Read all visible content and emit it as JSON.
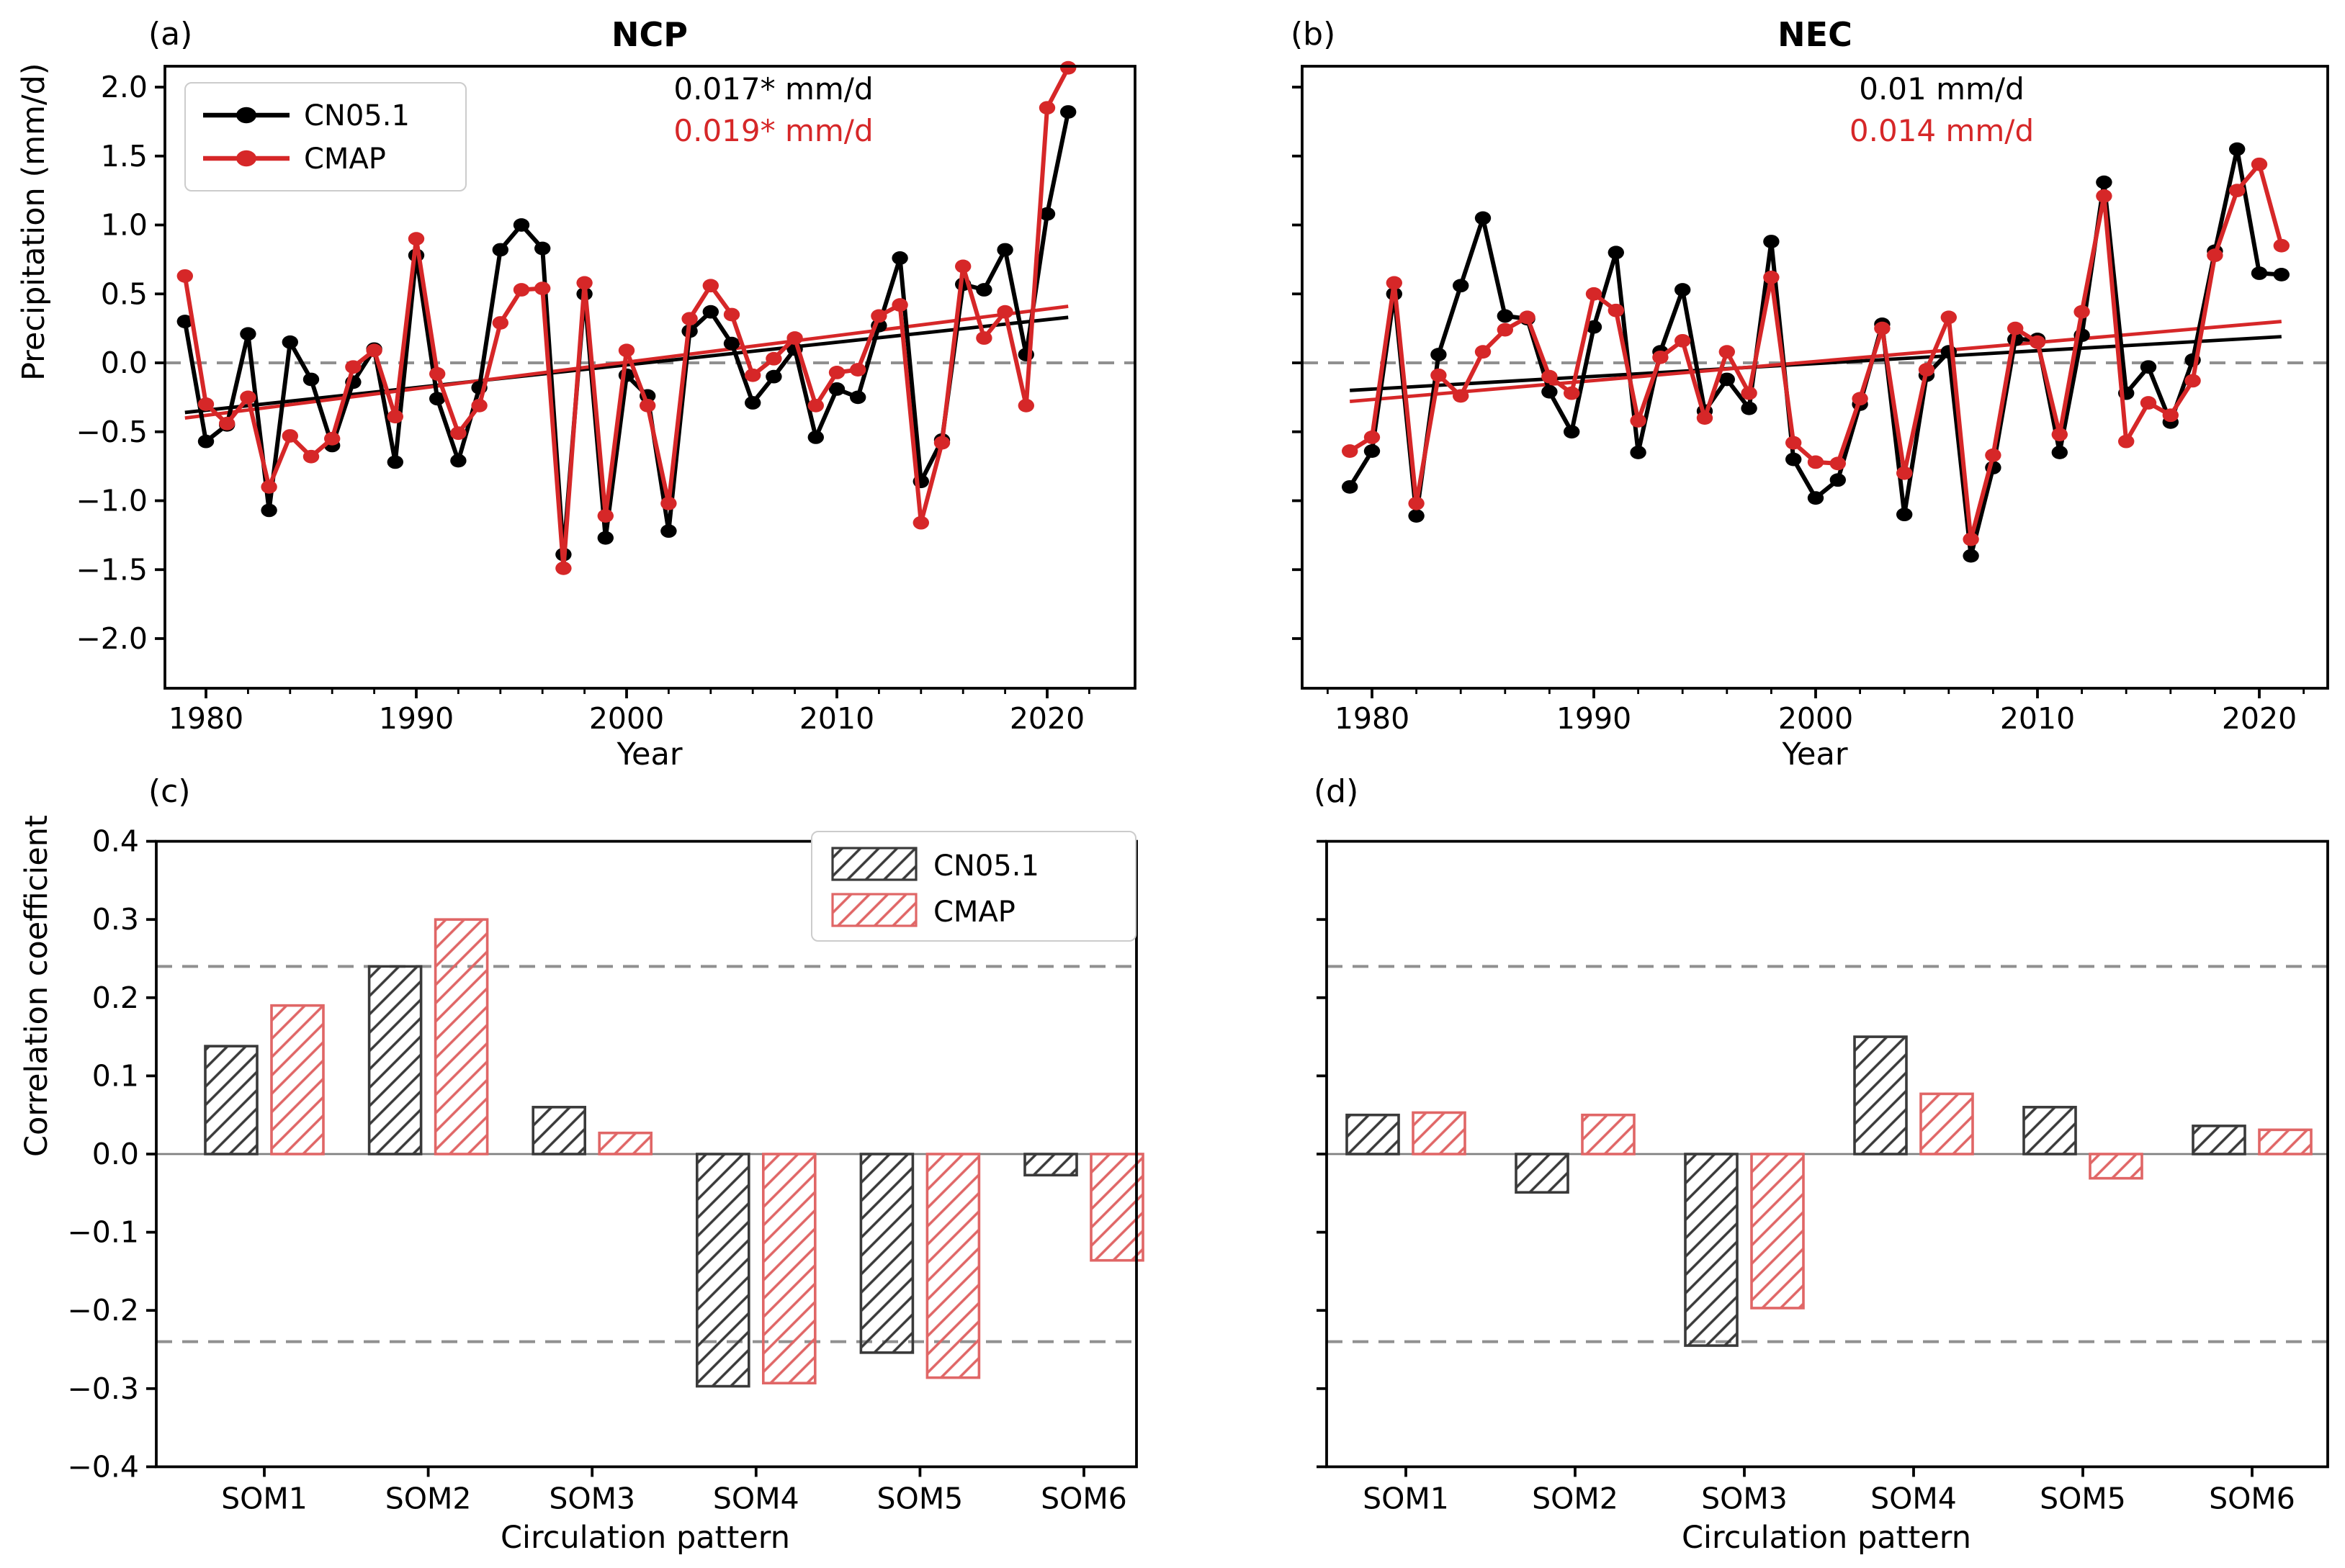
{
  "figure": {
    "panel_letters": [
      "(a)",
      "(b)",
      "(c)",
      "(d)"
    ],
    "colors": {
      "cn051_line": "#000000",
      "cmap_line": "#d62728",
      "cn051_bar": "#3a3a3a",
      "cmap_bar": "#e06666",
      "dashed_reference": "#909090",
      "zero_line_gray": "#808080"
    }
  },
  "chart_data": [
    {
      "type": "line",
      "panel": "a",
      "title": "NCP",
      "xlabel": "Year",
      "ylabel": "Precipitation (mm/d)",
      "ylim": [
        -2.36,
        2.15
      ],
      "yticks": [
        "2.0",
        "1.5",
        "1.0",
        "0.5",
        "0.0",
        "−0.5",
        "−1.0",
        "−1.5",
        "−2.0"
      ],
      "ytick_values": [
        2.0,
        1.5,
        1.0,
        0.5,
        0.0,
        -0.5,
        -1.0,
        -1.5,
        -2.0
      ],
      "xticks": [
        1980,
        1990,
        2000,
        2010,
        2020
      ],
      "zero_dashed_line": 0,
      "x": [
        1979,
        1980,
        1981,
        1982,
        1983,
        1984,
        1985,
        1986,
        1987,
        1988,
        1989,
        1990,
        1991,
        1992,
        1993,
        1994,
        1995,
        1996,
        1997,
        1998,
        1999,
        2000,
        2001,
        2002,
        2003,
        2004,
        2005,
        2006,
        2007,
        2008,
        2009,
        2010,
        2011,
        2012,
        2013,
        2014,
        2015,
        2016,
        2017,
        2018,
        2019,
        2020,
        2021
      ],
      "series": [
        {
          "name": "CN05.1",
          "color": "#000000",
          "values": [
            0.3,
            -0.57,
            -0.45,
            0.21,
            -1.07,
            0.15,
            -0.12,
            -0.6,
            -0.14,
            0.1,
            -0.72,
            0.78,
            -0.26,
            -0.71,
            -0.18,
            0.82,
            1.0,
            0.83,
            -1.39,
            0.5,
            -1.27,
            -0.09,
            -0.24,
            -1.22,
            0.23,
            0.37,
            0.14,
            -0.29,
            -0.1,
            0.1,
            -0.54,
            -0.19,
            -0.25,
            0.27,
            0.76,
            -0.86,
            -0.56,
            0.57,
            0.53,
            0.82,
            0.06,
            1.08,
            1.82
          ]
        },
        {
          "name": "CMAP",
          "color": "#d62728",
          "values": [
            0.63,
            -0.3,
            -0.44,
            -0.25,
            -0.9,
            -0.53,
            -0.68,
            -0.55,
            -0.03,
            0.09,
            -0.39,
            0.9,
            -0.08,
            -0.51,
            -0.31,
            0.29,
            0.53,
            0.54,
            -1.49,
            0.58,
            -1.11,
            0.09,
            -0.31,
            -1.02,
            0.32,
            0.56,
            0.35,
            -0.09,
            0.03,
            0.18,
            -0.31,
            -0.07,
            -0.05,
            0.34,
            0.42,
            -1.16,
            -0.58,
            0.7,
            0.18,
            0.37,
            -0.31,
            1.85,
            2.14
          ]
        }
      ],
      "trends": [
        {
          "name": "CN05.1 trend",
          "color": "#000000",
          "x1": 1979,
          "y1": -0.36,
          "x2": 2021,
          "y2": 0.33
        },
        {
          "name": "CMAP trend",
          "color": "#d62728",
          "x1": 1979,
          "y1": -0.4,
          "x2": 2021,
          "y2": 0.41
        }
      ],
      "annotations": [
        {
          "text": "0.017* mm/d",
          "color": "#000000"
        },
        {
          "text": "0.019* mm/d",
          "color": "#d62728"
        }
      ],
      "legend": {
        "entries": [
          "CN05.1",
          "CMAP"
        ]
      }
    },
    {
      "type": "line",
      "panel": "b",
      "title": "NEC",
      "xlabel": "Year",
      "ylabel": "",
      "ylim": [
        -2.36,
        2.15
      ],
      "yticks": [],
      "ytick_values": [
        2.0,
        1.5,
        1.0,
        0.5,
        0.0,
        -0.5,
        -1.0,
        -1.5,
        -2.0
      ],
      "xticks": [
        1980,
        1990,
        2000,
        2010,
        2020
      ],
      "zero_dashed_line": 0,
      "x": [
        1979,
        1980,
        1981,
        1982,
        1983,
        1984,
        1985,
        1986,
        1987,
        1988,
        1989,
        1990,
        1991,
        1992,
        1993,
        1994,
        1995,
        1996,
        1997,
        1998,
        1999,
        2000,
        2001,
        2002,
        2003,
        2004,
        2005,
        2006,
        2007,
        2008,
        2009,
        2010,
        2011,
        2012,
        2013,
        2014,
        2015,
        2016,
        2017,
        2018,
        2019,
        2020,
        2021
      ],
      "series": [
        {
          "name": "CN05.1",
          "color": "#000000",
          "values": [
            -0.9,
            -0.64,
            0.5,
            -1.11,
            0.06,
            0.56,
            1.05,
            0.34,
            0.32,
            -0.21,
            -0.5,
            0.26,
            0.8,
            -0.65,
            0.08,
            0.53,
            -0.35,
            -0.12,
            -0.33,
            0.88,
            -0.7,
            -0.98,
            -0.85,
            -0.3,
            0.28,
            -1.1,
            -0.09,
            0.08,
            -1.4,
            -0.76,
            0.17,
            0.17,
            -0.65,
            0.2,
            1.31,
            -0.22,
            -0.03,
            -0.43,
            0.02,
            0.81,
            1.55,
            0.65,
            0.64
          ]
        },
        {
          "name": "CMAP",
          "color": "#d62728",
          "values": [
            -0.64,
            -0.54,
            0.58,
            -1.02,
            -0.09,
            -0.24,
            0.08,
            0.24,
            0.33,
            -0.1,
            -0.22,
            0.5,
            0.38,
            -0.42,
            0.04,
            0.16,
            -0.4,
            0.08,
            -0.22,
            0.62,
            -0.58,
            -0.72,
            -0.73,
            -0.26,
            0.25,
            -0.8,
            -0.05,
            0.33,
            -1.28,
            -0.67,
            0.25,
            0.15,
            -0.52,
            0.37,
            1.21,
            -0.57,
            -0.29,
            -0.38,
            -0.13,
            0.78,
            1.25,
            1.44,
            0.85
          ]
        }
      ],
      "trends": [
        {
          "name": "CN05.1 trend",
          "color": "#000000",
          "x1": 1979,
          "y1": -0.2,
          "x2": 2021,
          "y2": 0.19
        },
        {
          "name": "CMAP trend",
          "color": "#d62728",
          "x1": 1979,
          "y1": -0.28,
          "x2": 2021,
          "y2": 0.3
        }
      ],
      "annotations": [
        {
          "text": "0.01 mm/d",
          "color": "#000000"
        },
        {
          "text": "0.014 mm/d",
          "color": "#d62728"
        }
      ],
      "legend": null
    },
    {
      "type": "bar",
      "panel": "c",
      "xlabel": "Circulation pattern",
      "ylabel": "Correlation coefficient",
      "ylim": [
        -0.4,
        0.4
      ],
      "yticks": [
        "0.4",
        "0.3",
        "0.2",
        "0.1",
        "0.0",
        "−0.1",
        "−0.2",
        "−0.3",
        "−0.4"
      ],
      "ytick_values": [
        0.4,
        0.3,
        0.2,
        0.1,
        0.0,
        -0.1,
        -0.2,
        -0.3,
        -0.4
      ],
      "categories": [
        "SOM1",
        "SOM2",
        "SOM3",
        "SOM4",
        "SOM5",
        "SOM6"
      ],
      "significance_lines": [
        0.24,
        -0.24
      ],
      "series": [
        {
          "name": "CN05.1",
          "color": "#3a3a3a",
          "values": [
            0.138,
            0.24,
            0.06,
            -0.297,
            -0.254,
            -0.027
          ]
        },
        {
          "name": "CMAP",
          "color": "#e06666",
          "values": [
            0.19,
            0.3,
            0.027,
            -0.293,
            -0.286,
            -0.136
          ]
        }
      ],
      "legend": {
        "entries": [
          "CN05.1",
          "CMAP"
        ]
      }
    },
    {
      "type": "bar",
      "panel": "d",
      "xlabel": "Circulation pattern",
      "ylabel": "",
      "ylim": [
        -0.4,
        0.4
      ],
      "yticks": [],
      "ytick_values": [
        0.4,
        0.3,
        0.2,
        0.1,
        0.0,
        -0.1,
        -0.2,
        -0.3,
        -0.4
      ],
      "categories": [
        "SOM1",
        "SOM2",
        "SOM3",
        "SOM4",
        "SOM5",
        "SOM6"
      ],
      "significance_lines": [
        0.24,
        -0.24
      ],
      "series": [
        {
          "name": "CN05.1",
          "color": "#3a3a3a",
          "values": [
            0.05,
            -0.049,
            -0.245,
            0.15,
            0.06,
            0.036
          ]
        },
        {
          "name": "CMAP",
          "color": "#e06666",
          "values": [
            0.053,
            0.05,
            -0.197,
            0.077,
            -0.031,
            0.031
          ]
        }
      ],
      "legend": null
    }
  ]
}
